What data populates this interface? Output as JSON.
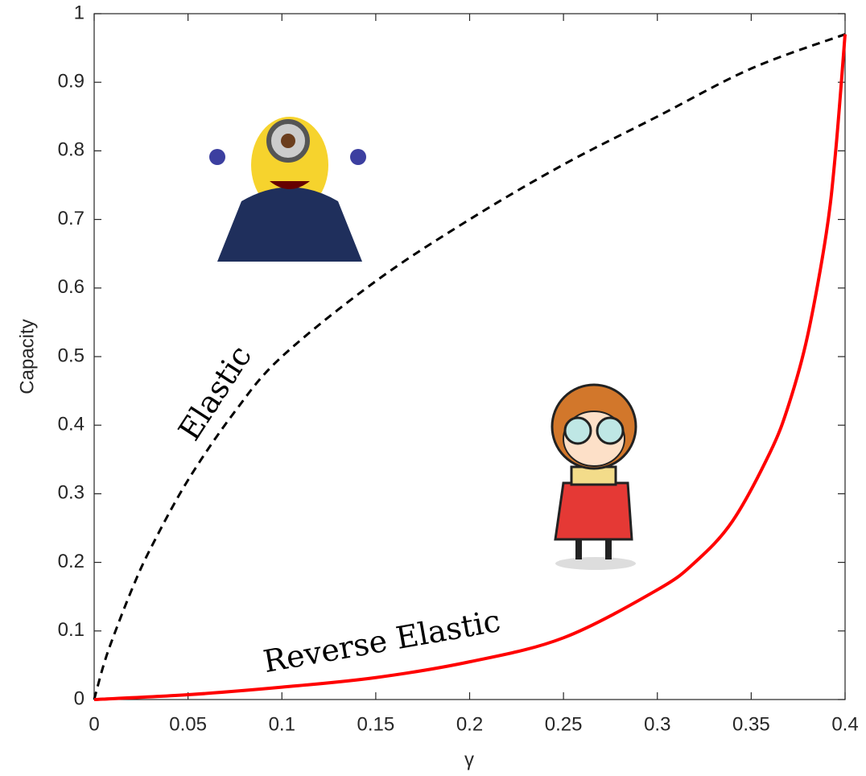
{
  "chart_data": {
    "type": "line",
    "xlabel": "γ",
    "ylabel": "Capacity",
    "annotations": [
      "Elastic",
      "Reverse Elastic"
    ],
    "series": [
      {
        "name": "Elastic",
        "color": "#000000",
        "dashed": true,
        "x": [
          0,
          0.005,
          0.01,
          0.02,
          0.03,
          0.05,
          0.075,
          0.1,
          0.15,
          0.2,
          0.25,
          0.3,
          0.35,
          0.4
        ],
        "values": [
          0,
          0.05,
          0.09,
          0.16,
          0.22,
          0.32,
          0.42,
          0.5,
          0.61,
          0.7,
          0.78,
          0.85,
          0.92,
          0.97
        ]
      },
      {
        "name": "Reverse Elastic",
        "color": "#ff0000",
        "dashed": false,
        "x": [
          0,
          0.05,
          0.1,
          0.15,
          0.2,
          0.25,
          0.3,
          0.32,
          0.34,
          0.36,
          0.37,
          0.38,
          0.39,
          0.395,
          0.4
        ],
        "values": [
          0,
          0.007,
          0.018,
          0.032,
          0.055,
          0.09,
          0.16,
          0.2,
          0.26,
          0.36,
          0.43,
          0.53,
          0.68,
          0.8,
          0.97
        ]
      }
    ],
    "xlim": [
      0,
      0.4
    ],
    "xticks": [
      0,
      0.05,
      0.1,
      0.15,
      0.2,
      0.25,
      0.3,
      0.35,
      0.4
    ],
    "ylim": [
      0,
      1
    ],
    "yticks": [
      0,
      0.1,
      0.2,
      0.3,
      0.4,
      0.5,
      0.6,
      0.7,
      0.8,
      0.9,
      1
    ],
    "grid": false
  }
}
